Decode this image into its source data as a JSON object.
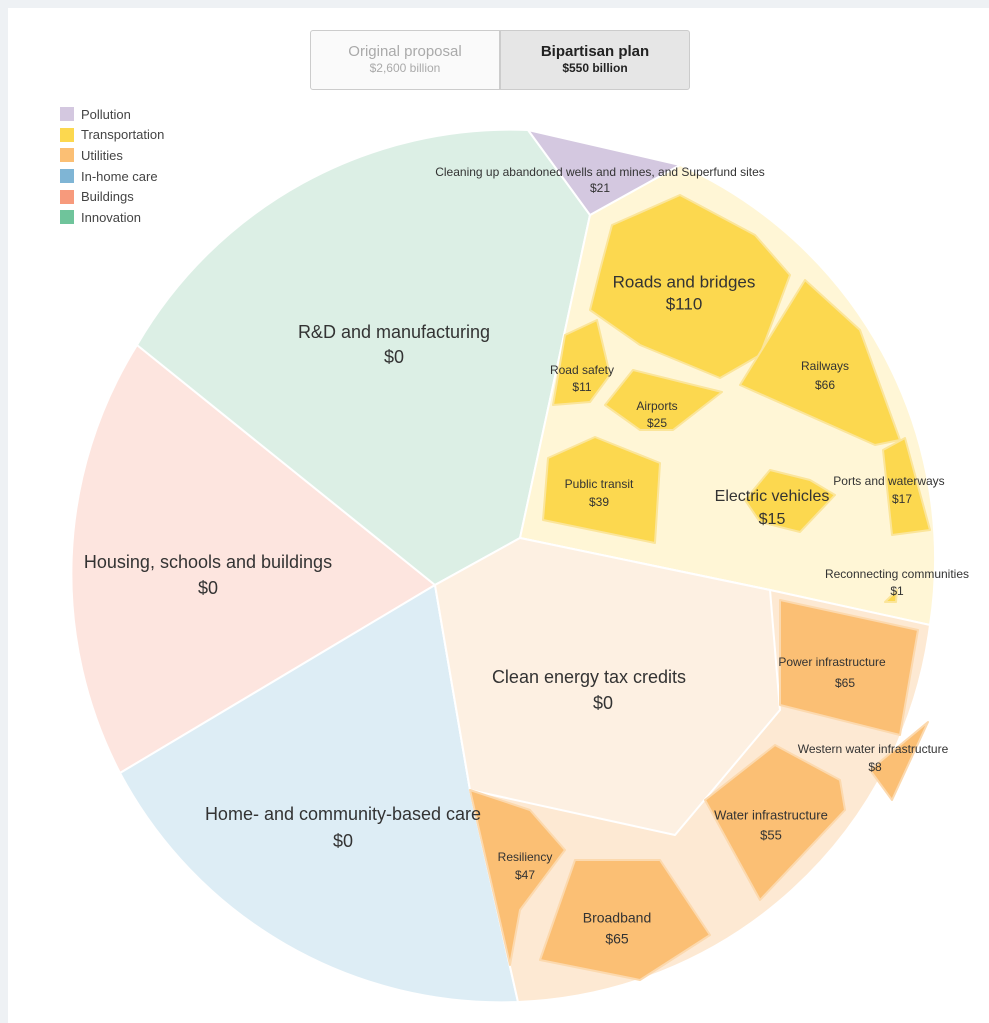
{
  "toggle": [
    {
      "label": "Original proposal",
      "amount": "$2,600 billion"
    },
    {
      "label": "Bipartisan plan",
      "amount": "$550 billion"
    }
  ],
  "legend": [
    "Pollution",
    "Transportation",
    "Utilities",
    "In-home care",
    "Buildings",
    "Innovation"
  ],
  "cells": [
    {
      "label": "Cleaning up abandoned wells and mines, and Superfund sites",
      "value": "$21"
    },
    {
      "label": "Roads and bridges",
      "value": "$110"
    },
    {
      "label": "R&D and manufacturing",
      "value": "$0"
    },
    {
      "label": "Road safety",
      "value": "$11"
    },
    {
      "label": "Railways",
      "value": "$66"
    },
    {
      "label": "Airports",
      "value": "$25"
    },
    {
      "label": "Public transit",
      "value": "$39"
    },
    {
      "label": "Electric vehicles",
      "value": "$15"
    },
    {
      "label": "Ports and waterways",
      "value": "$17"
    },
    {
      "label": "Housing, schools and buildings",
      "value": "$0"
    },
    {
      "label": "Reconnecting communities",
      "value": "$1"
    },
    {
      "label": "Power infrastructure",
      "value": "$65"
    },
    {
      "label": "Clean energy tax credits",
      "value": "$0"
    },
    {
      "label": "Western water infrastructure",
      "value": "$8"
    },
    {
      "label": "Water infrastructure",
      "value": "$55"
    },
    {
      "label": "Home- and community-based care",
      "value": "$0"
    },
    {
      "label": "Resiliency",
      "value": "$47"
    },
    {
      "label": "Broadband",
      "value": "$65"
    }
  ]
}
